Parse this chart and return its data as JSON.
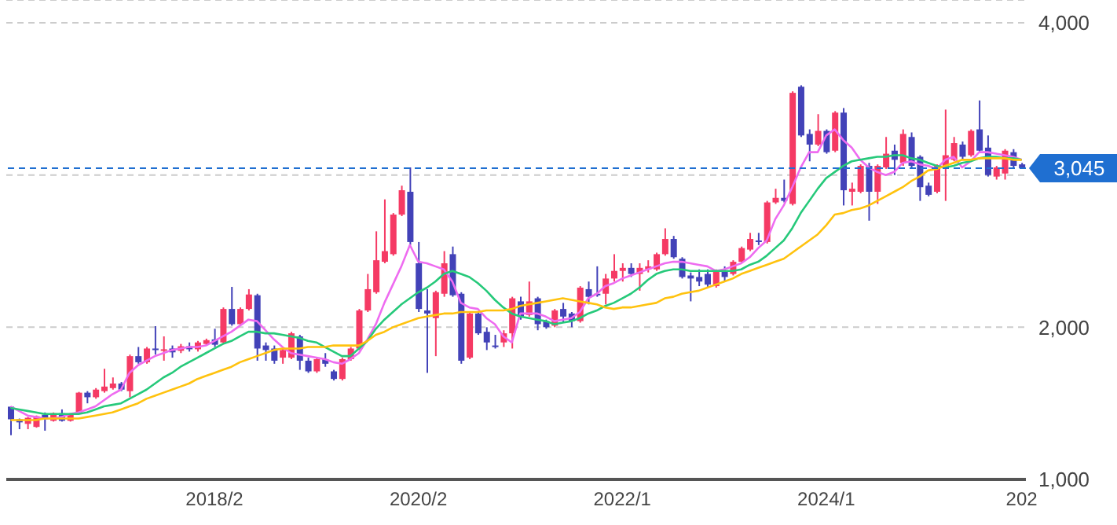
{
  "chart_data": {
    "type": "candlestick",
    "categories": [
      null,
      null,
      null,
      null,
      null,
      null,
      null,
      null,
      null,
      null,
      null,
      null,
      null,
      null,
      null,
      null,
      null,
      null,
      null,
      null,
      null,
      null,
      null,
      null,
      "2018/2",
      null,
      null,
      null,
      null,
      null,
      null,
      null,
      null,
      null,
      null,
      null,
      null,
      null,
      null,
      null,
      null,
      null,
      null,
      null,
      null,
      null,
      null,
      null,
      "2020/2",
      null,
      null,
      null,
      null,
      null,
      null,
      null,
      null,
      null,
      null,
      null,
      null,
      null,
      null,
      null,
      null,
      null,
      null,
      null,
      null,
      null,
      null,
      null,
      "2022/1",
      null,
      null,
      null,
      null,
      null,
      null,
      null,
      null,
      null,
      null,
      null,
      null,
      null,
      null,
      null,
      null,
      null,
      null,
      null,
      null,
      null,
      null,
      null,
      "2024/1",
      null,
      null,
      null,
      null,
      null,
      null,
      null,
      null,
      null,
      null,
      null,
      null,
      null,
      null,
      null,
      null,
      null,
      null,
      null,
      null,
      null,
      null,
      "202"
    ],
    "ohlc": [
      [
        1478,
        1480,
        1290,
        1395
      ],
      [
        1395,
        1400,
        1330,
        1375
      ],
      [
        1365,
        1410,
        1330,
        1405
      ],
      [
        1345,
        1420,
        1340,
        1415
      ],
      [
        1425,
        1440,
        1320,
        1395
      ],
      [
        1385,
        1440,
        1380,
        1435
      ],
      [
        1435,
        1460,
        1380,
        1385
      ],
      [
        1385,
        1430,
        1380,
        1425
      ],
      [
        1435,
        1575,
        1430,
        1570
      ],
      [
        1570,
        1580,
        1500,
        1540
      ],
      [
        1540,
        1600,
        1530,
        1590
      ],
      [
        1580,
        1727,
        1570,
        1610
      ],
      [
        1600,
        1670,
        1590,
        1630
      ],
      [
        1630,
        1640,
        1580,
        1590
      ],
      [
        1580,
        1820,
        1540,
        1810
      ],
      [
        1810,
        1870,
        1760,
        1770
      ],
      [
        1770,
        1870,
        1760,
        1860
      ],
      [
        1860,
        2007,
        1820,
        1850
      ],
      [
        1845,
        1940,
        1780,
        1855
      ],
      [
        1860,
        1880,
        1800,
        1835
      ],
      [
        1845,
        1890,
        1830,
        1875
      ],
      [
        1875,
        1900,
        1840,
        1855
      ],
      [
        1855,
        1910,
        1840,
        1900
      ],
      [
        1890,
        1925,
        1880,
        1915
      ],
      [
        1920,
        1990,
        1870,
        1885
      ],
      [
        1900,
        2130,
        1890,
        2120
      ],
      [
        2120,
        2265,
        2010,
        2020
      ],
      [
        2020,
        2130,
        2010,
        2120
      ],
      [
        2120,
        2250,
        2110,
        2215
      ],
      [
        2210,
        2220,
        1780,
        1860
      ],
      [
        1880,
        1900,
        1780,
        1850
      ],
      [
        1860,
        1880,
        1760,
        1780
      ],
      [
        1800,
        1860,
        1760,
        1850
      ],
      [
        1800,
        1970,
        1790,
        1960
      ],
      [
        1940,
        1950,
        1720,
        1780
      ],
      [
        1780,
        1800,
        1700,
        1710
      ],
      [
        1710,
        1800,
        1700,
        1790
      ],
      [
        1790,
        1830,
        1740,
        1760
      ],
      [
        1710,
        1720,
        1650,
        1660
      ],
      [
        1660,
        1800,
        1650,
        1790
      ],
      [
        1790,
        1870,
        1780,
        1860
      ],
      [
        1860,
        2120,
        1850,
        2110
      ],
      [
        2110,
        2350,
        2100,
        2250
      ],
      [
        2230,
        2630,
        2220,
        2440
      ],
      [
        2430,
        2840,
        2420,
        2500
      ],
      [
        2480,
        2750,
        2470,
        2740
      ],
      [
        2740,
        2930,
        2730,
        2900
      ],
      [
        2890,
        3050,
        2540,
        2560
      ],
      [
        2420,
        2560,
        2100,
        2120
      ],
      [
        2110,
        2250,
        1700,
        2090
      ],
      [
        2060,
        2240,
        1810,
        2230
      ],
      [
        2220,
        2500,
        2200,
        2420
      ],
      [
        2480,
        2530,
        2200,
        2210
      ],
      [
        2220,
        2230,
        1760,
        1780
      ],
      [
        1800,
        2100,
        1790,
        2090
      ],
      [
        2090,
        2100,
        1950,
        1960
      ],
      [
        1970,
        2000,
        1850,
        1900
      ],
      [
        1880,
        1950,
        1860,
        1870
      ],
      [
        1900,
        1980,
        1870,
        1960
      ],
      [
        1960,
        2200,
        1860,
        2190
      ],
      [
        2170,
        2200,
        2050,
        2070
      ],
      [
        2080,
        2300,
        2070,
        2170
      ],
      [
        2190,
        2200,
        1980,
        2020
      ],
      [
        2040,
        2050,
        1990,
        2000
      ],
      [
        2010,
        2120,
        2000,
        2110
      ],
      [
        2120,
        2160,
        2030,
        2070
      ],
      [
        2090,
        2100,
        2000,
        2040
      ],
      [
        2040,
        2270,
        2030,
        2260
      ],
      [
        2250,
        2300,
        2150,
        2200
      ],
      [
        2220,
        2400,
        2200,
        2210
      ],
      [
        2220,
        2350,
        2150,
        2320
      ],
      [
        2320,
        2480,
        2300,
        2370
      ],
      [
        2370,
        2420,
        2300,
        2390
      ],
      [
        2390,
        2420,
        2330,
        2350
      ],
      [
        2350,
        2420,
        2240,
        2390
      ],
      [
        2380,
        2440,
        2360,
        2400
      ],
      [
        2380,
        2490,
        2370,
        2480
      ],
      [
        2480,
        2650,
        2470,
        2580
      ],
      [
        2580,
        2600,
        2450,
        2460
      ],
      [
        2450,
        2460,
        2320,
        2330
      ],
      [
        2340,
        2360,
        2170,
        2320
      ],
      [
        2330,
        2380,
        2270,
        2300
      ],
      [
        2350,
        2380,
        2260,
        2280
      ],
      [
        2270,
        2380,
        2260,
        2370
      ],
      [
        2370,
        2400,
        2300,
        2330
      ],
      [
        2350,
        2440,
        2340,
        2430
      ],
      [
        2430,
        2530,
        2420,
        2520
      ],
      [
        2510,
        2620,
        2500,
        2580
      ],
      [
        2570,
        2620,
        2540,
        2560
      ],
      [
        2560,
        2830,
        2550,
        2820
      ],
      [
        2820,
        2910,
        2810,
        2850
      ],
      [
        2850,
        2970,
        2820,
        2830
      ],
      [
        2810,
        3550,
        2800,
        3540
      ],
      [
        3580,
        3590,
        3250,
        3260
      ],
      [
        3270,
        3300,
        3090,
        3200
      ],
      [
        3200,
        3400,
        3190,
        3290
      ],
      [
        3290,
        3300,
        3140,
        3150
      ],
      [
        3160,
        3420,
        3150,
        3410
      ],
      [
        3410,
        3440,
        2800,
        2900
      ],
      [
        2890,
        2950,
        2800,
        2910
      ],
      [
        2890,
        3070,
        2880,
        3060
      ],
      [
        3060,
        3080,
        2700,
        2890
      ],
      [
        2890,
        3070,
        2810,
        3060
      ],
      [
        3050,
        3250,
        3040,
        3140
      ],
      [
        3160,
        3200,
        3000,
        3100
      ],
      [
        3080,
        3300,
        3060,
        3270
      ],
      [
        3250,
        3280,
        3050,
        3060
      ],
      [
        3120,
        3130,
        2830,
        2920
      ],
      [
        2930,
        2950,
        2860,
        2870
      ],
      [
        2890,
        3070,
        2880,
        3060
      ],
      [
        3060,
        3430,
        2830,
        3130
      ],
      [
        3100,
        3250,
        3090,
        3210
      ],
      [
        3200,
        3220,
        3100,
        3120
      ],
      [
        3130,
        3300,
        3120,
        3290
      ],
      [
        3300,
        3490,
        3150,
        3160
      ],
      [
        3180,
        3260,
        2990,
        3000
      ],
      [
        2990,
        3060,
        2970,
        3050
      ],
      [
        3010,
        3170,
        2970,
        3160
      ],
      [
        3150,
        3170,
        3040,
        3060
      ],
      [
        3070,
        3080,
        3040,
        3045
      ]
    ],
    "colors": [
      "#4242b8",
      "#4242b8",
      "#f53a64",
      "#f53a64",
      "#4242b8",
      "#f53a64",
      "#4242b8",
      "#f53a64",
      "#f53a64",
      "#4242b8",
      "#f53a64",
      "#f53a64",
      "#f53a64",
      "#4242b8",
      "#f53a64",
      "#4242b8",
      "#f53a64",
      "#4242b8",
      "#f53a64",
      "#4242b8",
      "#f53a64",
      "#4242b8",
      "#f53a64",
      "#f53a64",
      "#4242b8",
      "#f53a64",
      "#4242b8",
      "#f53a64",
      "#f53a64",
      "#4242b8",
      "#4242b8",
      "#4242b8",
      "#f53a64",
      "#f53a64",
      "#4242b8",
      "#4242b8",
      "#f53a64",
      "#4242b8",
      "#4242b8",
      "#f53a64",
      "#f53a64",
      "#f53a64",
      "#f53a64",
      "#f53a64",
      "#f53a64",
      "#f53a64",
      "#f53a64",
      "#4242b8",
      "#4242b8",
      "#4242b8",
      "#f53a64",
      "#f53a64",
      "#4242b8",
      "#4242b8",
      "#f53a64",
      "#4242b8",
      "#4242b8",
      "#4242b8",
      "#f53a64",
      "#f53a64",
      "#4242b8",
      "#f53a64",
      "#4242b8",
      "#4242b8",
      "#f53a64",
      "#4242b8",
      "#4242b8",
      "#f53a64",
      "#4242b8",
      "#4242b8",
      "#f53a64",
      "#f53a64",
      "#f53a64",
      "#4242b8",
      "#f53a64",
      "#f53a64",
      "#f53a64",
      "#f53a64",
      "#4242b8",
      "#4242b8",
      "#4242b8",
      "#4242b8",
      "#4242b8",
      "#f53a64",
      "#4242b8",
      "#f53a64",
      "#f53a64",
      "#f53a64",
      "#4242b8",
      "#f53a64",
      "#f53a64",
      "#4242b8",
      "#f53a64",
      "#4242b8",
      "#4242b8",
      "#f53a64",
      "#4242b8",
      "#f53a64",
      "#4242b8",
      "#f53a64",
      "#f53a64",
      "#4242b8",
      "#f53a64",
      "#f53a64",
      "#4242b8",
      "#f53a64",
      "#4242b8",
      "#4242b8",
      "#4242b8",
      "#f53a64",
      "#f53a64",
      "#f53a64",
      "#4242b8",
      "#f53a64",
      "#4242b8",
      "#4242b8",
      "#f53a64",
      "#f53a64",
      "#4242b8",
      "#4242b8"
    ],
    "series": [
      {
        "type": "line",
        "color": "#ee6cf0",
        "values": [
          1480,
          1450,
          1420,
          1410,
          1400,
          1400,
          1410,
          1430,
          1440,
          1460,
          1480,
          1520,
          1560,
          1590,
          1700,
          1750,
          1780,
          1810,
          1830,
          1850,
          1860,
          1870,
          1870,
          1880,
          1910,
          1940,
          1970,
          2010,
          2050,
          2040,
          1980,
          1920,
          1870,
          1830,
          1820,
          1810,
          1800,
          1790,
          1770,
          1760,
          1790,
          1830,
          1920,
          2020,
          2160,
          2280,
          2400,
          2540,
          2430,
          2420,
          2400,
          2380,
          2300,
          2160,
          2130,
          2120,
          2060,
          2020,
          1940,
          1900,
          2090,
          2090,
          2090,
          2070,
          2040,
          2050,
          2060,
          2100,
          2190,
          2220,
          2270,
          2290,
          2320,
          2340,
          2360,
          2380,
          2400,
          2420,
          2430,
          2430,
          2420,
          2410,
          2400,
          2370,
          2380,
          2400,
          2420,
          2460,
          2520,
          2570,
          2710,
          2800,
          2920,
          3050,
          3150,
          3150,
          3260,
          3300,
          3230,
          3180,
          3100,
          3050,
          3020,
          3000,
          3020,
          3080,
          3090,
          3070,
          3060,
          3040,
          3100,
          3120,
          3050,
          3090,
          3150,
          3150,
          3140,
          3130,
          3120,
          3100
        ]
      },
      {
        "type": "line",
        "color": "#26c97a",
        "values": [
          1470,
          1460,
          1450,
          1440,
          1430,
          1430,
          1430,
          1430,
          1430,
          1440,
          1460,
          1480,
          1490,
          1500,
          1530,
          1560,
          1590,
          1630,
          1670,
          1700,
          1740,
          1770,
          1800,
          1830,
          1860,
          1890,
          1910,
          1940,
          1970,
          1970,
          1960,
          1960,
          1950,
          1940,
          1930,
          1910,
          1900,
          1870,
          1840,
          1810,
          1810,
          1860,
          1910,
          1990,
          2050,
          2100,
          2150,
          2190,
          2230,
          2260,
          2300,
          2350,
          2370,
          2350,
          2330,
          2290,
          2240,
          2180,
          2130,
          2090,
          2070,
          2060,
          2050,
          2040,
          2020,
          2030,
          2040,
          2060,
          2090,
          2110,
          2140,
          2160,
          2190,
          2220,
          2260,
          2310,
          2350,
          2370,
          2380,
          2380,
          2370,
          2370,
          2370,
          2370,
          2370,
          2370,
          2380,
          2410,
          2430,
          2470,
          2520,
          2570,
          2650,
          2750,
          2830,
          2910,
          2980,
          3020,
          3060,
          3090,
          3100,
          3110,
          3120,
          3120,
          3130,
          3130,
          3110,
          3100,
          3080,
          3060,
          3050,
          3060,
          3080,
          3090,
          3110,
          3120,
          3120,
          3110,
          3110,
          3100
        ]
      },
      {
        "type": "line",
        "color": "#ffc20e",
        "values": [
          1390,
          1390,
          1390,
          1390,
          1400,
          1400,
          1400,
          1400,
          1400,
          1410,
          1420,
          1430,
          1440,
          1460,
          1480,
          1500,
          1530,
          1550,
          1570,
          1590,
          1610,
          1630,
          1660,
          1680,
          1700,
          1720,
          1740,
          1770,
          1790,
          1810,
          1830,
          1850,
          1860,
          1860,
          1860,
          1870,
          1870,
          1870,
          1880,
          1880,
          1880,
          1880,
          1910,
          1950,
          1970,
          2000,
          2020,
          2040,
          2060,
          2070,
          2080,
          2090,
          2090,
          2100,
          2100,
          2100,
          2110,
          2110,
          2110,
          2120,
          2140,
          2150,
          2160,
          2170,
          2180,
          2190,
          2180,
          2170,
          2160,
          2150,
          2130,
          2120,
          2130,
          2130,
          2140,
          2150,
          2160,
          2190,
          2200,
          2220,
          2230,
          2240,
          2260,
          2280,
          2300,
          2320,
          2350,
          2370,
          2390,
          2410,
          2430,
          2450,
          2490,
          2530,
          2570,
          2610,
          2670,
          2740,
          2750,
          2770,
          2780,
          2800,
          2830,
          2860,
          2890,
          2920,
          2960,
          2990,
          3030,
          3040,
          3060,
          3080,
          3100,
          3100,
          3110,
          3110,
          3110,
          3110,
          3100,
          3100
        ]
      }
    ],
    "ylim": [
      1000,
      4150
    ],
    "yticks": [
      {
        "value": 1000,
        "label": "1,000"
      },
      {
        "value": 2000,
        "label": "2,000"
      },
      {
        "value": 3000,
        "label": null
      },
      {
        "value": 4000,
        "label": "4,000"
      }
    ],
    "grid": "y",
    "marker": "none",
    "ref_lines": [
      {
        "axis": "y",
        "value": 3045,
        "label": "3,045",
        "color": "#1f6fd1",
        "line_style": "dashed"
      }
    ]
  }
}
